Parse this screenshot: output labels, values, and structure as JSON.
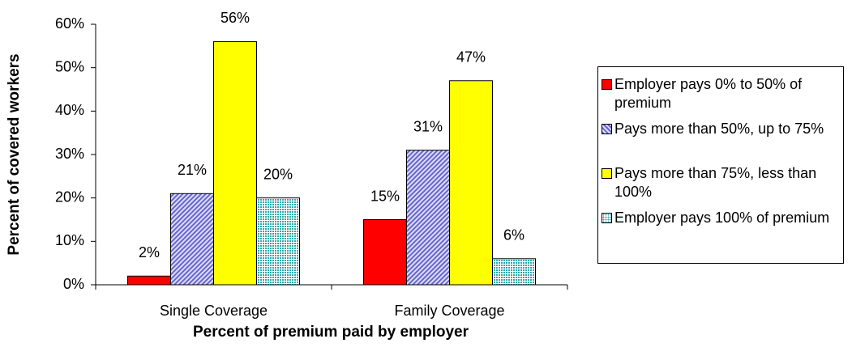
{
  "chart_data": {
    "type": "bar",
    "x_label": "Percent of premium paid by employer",
    "y_label": "Percent of covered workers",
    "categories": [
      "Single Coverage",
      "Family Coverage"
    ],
    "series": [
      {
        "name": "Employer pays 0% to 50% of premium",
        "color": "#ff0000",
        "pattern": "solid",
        "values": [
          2,
          15
        ],
        "value_labels": [
          "2%",
          "15%"
        ]
      },
      {
        "name": "Pays more than 50%, up to 75%",
        "color": "#6666cc",
        "pattern": "hatch",
        "values": [
          21,
          31
        ],
        "value_labels": [
          "21%",
          "31%"
        ]
      },
      {
        "name": "Pays more than 75%, less than 100%",
        "color": "#ffff00",
        "pattern": "solid",
        "values": [
          56,
          47
        ],
        "value_labels": [
          "56%",
          "47%"
        ]
      },
      {
        "name": "Employer pays 100% of premium",
        "color": "#33aaaa",
        "pattern": "dots",
        "values": [
          20,
          6
        ],
        "value_labels": [
          "20%",
          "6%"
        ]
      }
    ],
    "ylim": [
      0,
      60
    ],
    "yticks": [
      {
        "value": 0,
        "label": "0%"
      },
      {
        "value": 10,
        "label": "10%"
      },
      {
        "value": 20,
        "label": "20%"
      },
      {
        "value": 30,
        "label": "30%"
      },
      {
        "value": 40,
        "label": "40%"
      },
      {
        "value": 50,
        "label": "50%"
      },
      {
        "value": 60,
        "label": "60%"
      }
    ],
    "legend": "right"
  }
}
